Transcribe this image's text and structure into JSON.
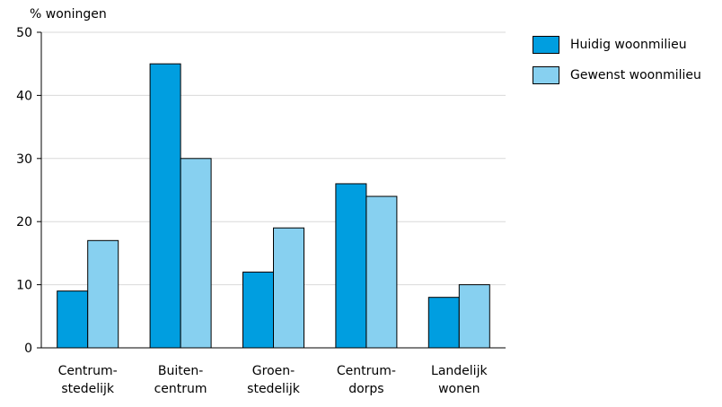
{
  "chart_data": {
    "type": "bar",
    "ylabel": "% woningen",
    "xlabel": "",
    "title": "",
    "ylim": [
      0,
      50
    ],
    "yticks": [
      0,
      10,
      20,
      30,
      40,
      50
    ],
    "grid": true,
    "legend_position": "top-right",
    "categories": [
      [
        "Centrum-",
        "stedelijk"
      ],
      [
        "Buiten-",
        "centrum"
      ],
      [
        "Groen-",
        "stedelijk"
      ],
      [
        "Centrum-",
        "dorps"
      ],
      [
        "Landelijk",
        "wonen"
      ]
    ],
    "series": [
      {
        "name": "Huidig woonmilieu",
        "color": "#009ee0",
        "values": [
          9,
          45,
          12,
          26,
          8
        ]
      },
      {
        "name": "Gewenst woonmilieu",
        "color": "#87d0f0",
        "values": [
          17,
          30,
          19,
          24,
          10
        ]
      }
    ]
  }
}
